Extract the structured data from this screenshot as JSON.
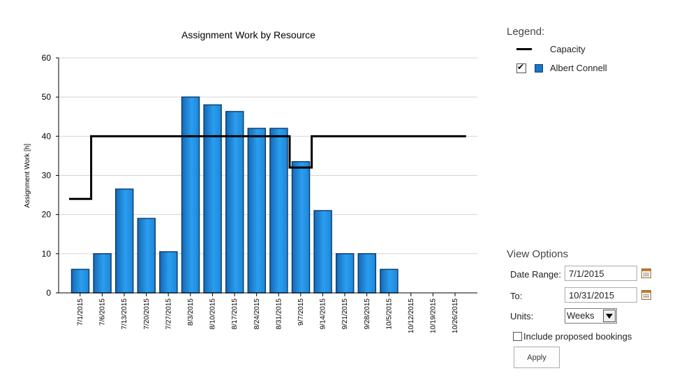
{
  "chart_data": {
    "type": "bar",
    "title": "Assignment Work by Resource",
    "ylabel": "Assignment Work [h]",
    "xlabel": "",
    "ylim": [
      0,
      60
    ],
    "yticks": [
      0,
      10,
      20,
      30,
      40,
      50,
      60
    ],
    "grid": true,
    "categories": [
      "7/1/2015",
      "7/6/2015",
      "7/13/2015",
      "7/20/2015",
      "7/27/2015",
      "8/3/2015",
      "8/10/2015",
      "8/17/2015",
      "8/24/2015",
      "8/31/2015",
      "9/7/2015",
      "9/14/2015",
      "9/21/2015",
      "9/28/2015",
      "10/5/2015",
      "10/12/2015",
      "10/19/2015",
      "10/26/2015"
    ],
    "series": [
      {
        "name": "Albert Connell",
        "kind": "bar",
        "color": "#1976c8",
        "values": [
          6,
          10,
          26.5,
          19,
          10.5,
          50,
          48,
          46.3,
          42,
          42,
          33.5,
          21,
          10,
          10,
          6,
          0,
          0,
          0
        ]
      },
      {
        "name": "Capacity",
        "kind": "step-line",
        "color": "#000000",
        "values": [
          24,
          40,
          40,
          40,
          40,
          40,
          40,
          40,
          40,
          40,
          32,
          40,
          40,
          40,
          40,
          40,
          40,
          40
        ]
      }
    ]
  },
  "legend": {
    "heading": "Legend:",
    "items": [
      {
        "label": "Capacity"
      },
      {
        "label": "Albert Connell",
        "checked": true
      }
    ]
  },
  "view_options": {
    "heading": "View Options",
    "date_range_label": "Date Range:",
    "date_range_value": "7/1/2015",
    "to_label": "To:",
    "to_value": "10/31/2015",
    "units_label": "Units:",
    "units_value": "Weeks",
    "include_label": "Include proposed bookings",
    "include_checked": false,
    "apply_label": "Apply"
  }
}
